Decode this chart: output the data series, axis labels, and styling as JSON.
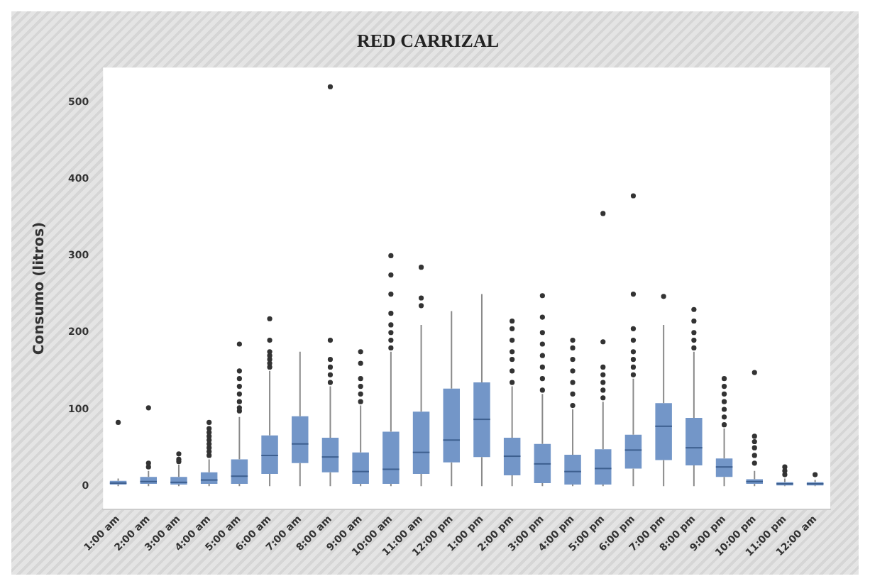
{
  "chart_data": {
    "type": "box",
    "title": "RED CARRIZAL",
    "ylabel": "Consumo (litros)",
    "categories": [
      "1:00 am",
      "2:00 am",
      "3:00 am",
      "4:00 am",
      "5:00 am",
      "6:00 am",
      "7:00 am",
      "8:00 am",
      "9:00 am",
      "10:00 am",
      "11:00 am",
      "12:00 pm",
      "1:00 pm",
      "2:00 pm",
      "3:00 pm",
      "4:00 pm",
      "5:00 pm",
      "6:00 pm",
      "7:00 pm",
      "8:00 pm",
      "9:00 pm",
      "10:00 pm",
      "11:00 pm",
      "12:00 am"
    ],
    "color": "#7396c8",
    "boxes": [
      {
        "low": 0,
        "q1": 2,
        "median": 4,
        "q3": 7,
        "high": 10,
        "outliers": [
          83
        ]
      },
      {
        "low": 0,
        "q1": 3,
        "median": 6,
        "q3": 12,
        "high": 20,
        "outliers": [
          25,
          30,
          102
        ]
      },
      {
        "low": 0,
        "q1": 2,
        "median": 5,
        "q3": 12,
        "high": 28,
        "outliers": [
          32,
          35,
          42
        ]
      },
      {
        "low": 0,
        "q1": 3,
        "median": 8,
        "q3": 18,
        "high": 35,
        "outliers": [
          40,
          45,
          50,
          55,
          60,
          65,
          70,
          75,
          83
        ]
      },
      {
        "low": 0,
        "q1": 3,
        "median": 13,
        "q3": 35,
        "high": 90,
        "outliers": [
          98,
          102,
          110,
          120,
          130,
          140,
          150,
          185
        ]
      },
      {
        "low": 0,
        "q1": 16,
        "median": 40,
        "q3": 66,
        "high": 150,
        "outliers": [
          155,
          160,
          165,
          170,
          175,
          190,
          218
        ]
      },
      {
        "low": 0,
        "q1": 30,
        "median": 55,
        "q3": 91,
        "high": 175
      },
      {
        "low": 0,
        "q1": 18,
        "median": 38,
        "q3": 63,
        "high": 130,
        "outliers": [
          135,
          145,
          155,
          165,
          190,
          520
        ]
      },
      {
        "low": 0,
        "q1": 3,
        "median": 19,
        "q3": 44,
        "high": 105,
        "outliers": [
          110,
          120,
          130,
          140,
          160,
          175
        ]
      },
      {
        "low": 0,
        "q1": 3,
        "median": 22,
        "q3": 71,
        "high": 175,
        "outliers": [
          180,
          190,
          200,
          210,
          225,
          250,
          275,
          300
        ]
      },
      {
        "low": 0,
        "q1": 16,
        "median": 44,
        "q3": 97,
        "high": 210,
        "outliers": [
          235,
          245,
          285
        ]
      },
      {
        "low": 0,
        "q1": 31,
        "median": 60,
        "q3": 127,
        "high": 228
      },
      {
        "low": 0,
        "q1": 38,
        "median": 87,
        "q3": 135,
        "high": 250
      },
      {
        "low": 0,
        "q1": 14,
        "median": 39,
        "q3": 63,
        "high": 130,
        "outliers": [
          135,
          150,
          165,
          175,
          190,
          205,
          215
        ]
      },
      {
        "low": 0,
        "q1": 4,
        "median": 29,
        "q3": 55,
        "high": 120,
        "outliers": [
          125,
          140,
          155,
          170,
          185,
          200,
          220,
          248
        ]
      },
      {
        "low": 0,
        "q1": 2,
        "median": 19,
        "q3": 41,
        "high": 100,
        "outliers": [
          105,
          120,
          135,
          150,
          165,
          180,
          190
        ]
      },
      {
        "low": 0,
        "q1": 2,
        "median": 23,
        "q3": 48,
        "high": 110,
        "outliers": [
          115,
          125,
          135,
          145,
          155,
          188,
          355
        ]
      },
      {
        "low": 0,
        "q1": 23,
        "median": 47,
        "q3": 67,
        "high": 140,
        "outliers": [
          145,
          155,
          165,
          175,
          190,
          205,
          250,
          378
        ]
      },
      {
        "low": 0,
        "q1": 34,
        "median": 78,
        "q3": 108,
        "high": 210,
        "outliers": [
          247
        ]
      },
      {
        "low": 0,
        "q1": 27,
        "median": 50,
        "q3": 89,
        "high": 175,
        "outliers": [
          180,
          190,
          200,
          215,
          230
        ]
      },
      {
        "low": 0,
        "q1": 12,
        "median": 25,
        "q3": 36,
        "high": 75,
        "outliers": [
          80,
          90,
          100,
          110,
          120,
          130,
          140
        ]
      },
      {
        "low": 0,
        "q1": 3,
        "median": 6,
        "q3": 9,
        "high": 20,
        "outliers": [
          30,
          40,
          50,
          58,
          65,
          148
        ]
      },
      {
        "low": 0,
        "q1": 1,
        "median": 3,
        "q3": 5,
        "high": 10,
        "outliers": [
          15,
          20,
          25
        ]
      },
      {
        "low": 0,
        "q1": 1,
        "median": 3,
        "q3": 5,
        "high": 8,
        "outliers": [
          15
        ]
      }
    ],
    "ylim": [
      -30,
      545
    ],
    "yticks": [
      0,
      100,
      200,
      300,
      400,
      500
    ],
    "grid": false,
    "legend": false
  }
}
